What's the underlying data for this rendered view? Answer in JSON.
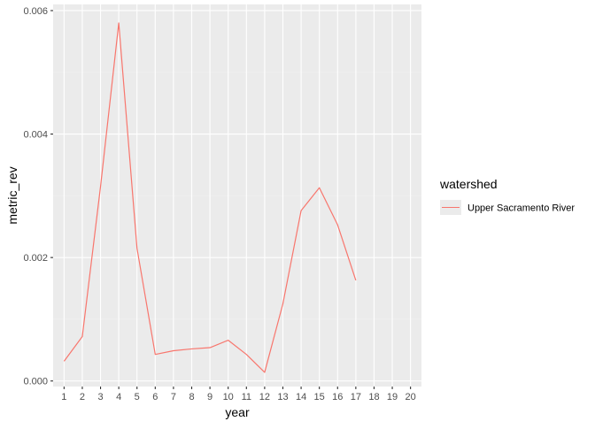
{
  "chart_data": {
    "type": "line",
    "title": "",
    "xlabel": "year",
    "ylabel": "metric_rev",
    "x_ticks": [
      "1",
      "2",
      "3",
      "4",
      "5",
      "6",
      "7",
      "8",
      "9",
      "10",
      "11",
      "12",
      "13",
      "14",
      "15",
      "16",
      "17",
      "18",
      "19",
      "20"
    ],
    "y_ticks": [
      0.0,
      0.002,
      0.004,
      0.006
    ],
    "y_tick_labels": [
      "0.000",
      "0.002",
      "0.004",
      "0.006"
    ],
    "xlim": [
      0.4,
      20.6
    ],
    "ylim": [
      -9e-05,
      0.0061
    ],
    "grid": true,
    "legend": {
      "title": "watershed",
      "position": "right"
    },
    "series": [
      {
        "name": "Upper Sacramento River",
        "color": "#F8766D",
        "x": [
          1,
          2,
          3,
          4,
          5,
          6,
          7,
          8,
          9,
          10,
          11,
          12,
          13,
          14,
          15,
          16,
          17
        ],
        "values": [
          0.00032,
          0.00072,
          0.00315,
          0.0058,
          0.00215,
          0.00043,
          0.00049,
          0.00052,
          0.00054,
          0.00066,
          0.00043,
          0.00014,
          0.00125,
          0.00276,
          0.00313,
          0.00253,
          0.00163
        ]
      }
    ]
  },
  "colors": {
    "panel_bg": "#EBEBEB",
    "grid_major": "#FFFFFF",
    "grid_minor": "#F2F2F2",
    "tick_text": "#4D4D4D"
  }
}
